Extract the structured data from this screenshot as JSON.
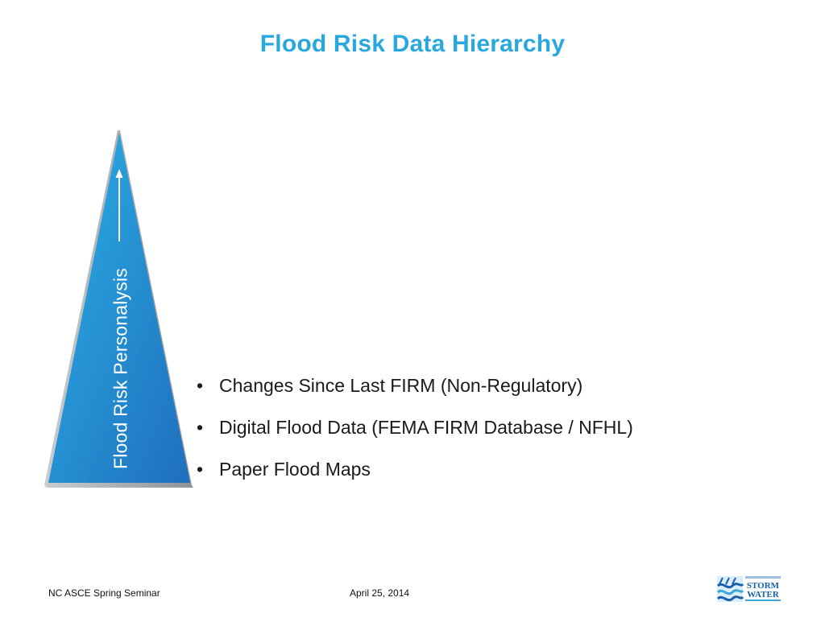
{
  "slide": {
    "title": "Flood Risk Data Hierarchy",
    "pyramid": {
      "label": "Flood Risk Personalysis",
      "colors": {
        "top": "#29a8e0",
        "bottom": "#2178c2",
        "shadow": "#9aa0a6"
      }
    },
    "bullets": [
      "Changes Since Last FIRM (Non-Regulatory)",
      "Digital Flood Data (FEMA FIRM Database / NFHL)",
      "Paper Flood Maps"
    ],
    "footer": {
      "left": "NC ASCE Spring Seminar",
      "date": "April 25, 2014"
    },
    "logo": {
      "icon": "storm-water-logo",
      "line1": "STORM",
      "line2": "WATER",
      "colors": {
        "primary": "#1b5fa8",
        "accent": "#39a8d8"
      }
    }
  }
}
